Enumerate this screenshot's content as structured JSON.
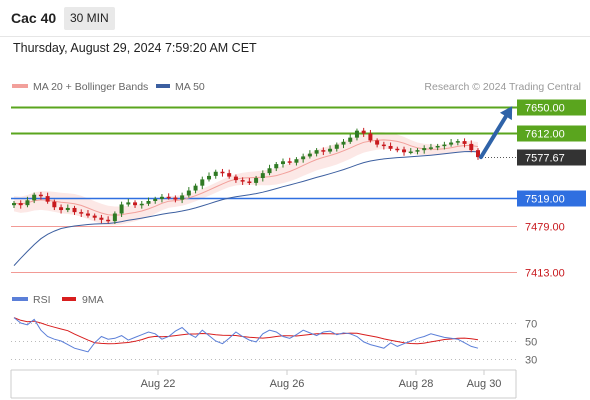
{
  "header": {
    "symbol": "Cac 40",
    "timeframe": "30 MIN",
    "datetime": "Thursday, August 29, 2024 7:59:20 AM CET"
  },
  "legend": {
    "bollinger": "MA 20 + Bollinger Bands",
    "ma50": "MA 50",
    "copyright": "Research © 2024 Trading Central"
  },
  "rsi_legend": {
    "rsi": "RSI",
    "ma9": "9MA"
  },
  "colors": {
    "resistance": "#5aa51e",
    "support_line": "#2f6fe0",
    "support_text": "#c8191e",
    "current": "#333333",
    "candle_up": "#2f7a24",
    "candle_down": "#c8191e",
    "ma20": "#f2a09b",
    "band_fill": "#fbe4e2",
    "ma50": "#3c5fa0",
    "arrow": "#2f63a8",
    "rsi": "#5b7fd8",
    "rsi_ma": "#d81e1e"
  },
  "chart_data": [
    {
      "type": "candlestick",
      "title": "Cac 40 30 MIN",
      "ylim": [
        7395,
        7670
      ],
      "x_ticks": [
        "Aug 22",
        "Aug 26",
        "Aug 28",
        "Aug 30"
      ],
      "levels": [
        {
          "label": "7650.00",
          "value": 7650.0,
          "kind": "resistance"
        },
        {
          "label": "7612.00",
          "value": 7612.0,
          "kind": "resistance"
        },
        {
          "label": "7577.67",
          "value": 7577.67,
          "kind": "current"
        },
        {
          "label": "7519.00",
          "value": 7519.0,
          "kind": "pivot"
        },
        {
          "label": "7479.00",
          "value": 7479.0,
          "kind": "support"
        },
        {
          "label": "7413.00",
          "value": 7413.0,
          "kind": "support"
        }
      ],
      "series": [
        {
          "name": "MA 20 + Bollinger Bands",
          "kind": "band"
        },
        {
          "name": "MA 50",
          "kind": "line"
        }
      ],
      "close": [
        7512,
        7509,
        7516,
        7524,
        7522,
        7514,
        7506,
        7502,
        7505,
        7499,
        7497,
        7494,
        7491,
        7488,
        7486,
        7497,
        7510,
        7513,
        7509,
        7511,
        7515,
        7518,
        7521,
        7520,
        7517,
        7523,
        7530,
        7537,
        7546,
        7551,
        7557,
        7555,
        7550,
        7545,
        7543,
        7541,
        7548,
        7555,
        7562,
        7568,
        7572,
        7570,
        7575,
        7579,
        7583,
        7588,
        7586,
        7590,
        7596,
        7600,
        7606,
        7616,
        7612,
        7602,
        7596,
        7594,
        7590,
        7589,
        7585,
        7586,
        7588,
        7591,
        7592,
        7594,
        7596,
        7599,
        7601,
        7597,
        7588,
        7578
      ],
      "projection": {
        "from": 7578,
        "to": 7650
      }
    },
    {
      "type": "line",
      "title": "RSI",
      "ylim": [
        20,
        80
      ],
      "y_ticks": [
        70,
        50,
        30
      ],
      "series": [
        {
          "name": "RSI"
        },
        {
          "name": "9MA"
        }
      ],
      "rsi": [
        76,
        70,
        68,
        74,
        62,
        55,
        52,
        50,
        46,
        42,
        40,
        38,
        48,
        55,
        52,
        53,
        56,
        51,
        54,
        57,
        60,
        58,
        52,
        55,
        61,
        65,
        58,
        54,
        62,
        56,
        50,
        47,
        53,
        60,
        55,
        51,
        49,
        58,
        62,
        60,
        55,
        53,
        57,
        62,
        59,
        56,
        60,
        61,
        57,
        59,
        58,
        55,
        49,
        46,
        44,
        42,
        48,
        44,
        47,
        50,
        53,
        55,
        58,
        56,
        54,
        53,
        52,
        48,
        44,
        42
      ]
    }
  ]
}
